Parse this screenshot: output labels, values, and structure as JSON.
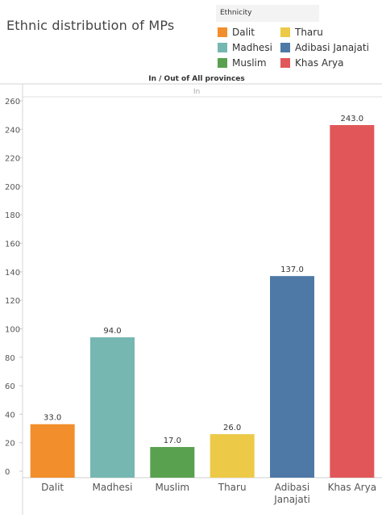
{
  "header": {
    "title": "Ethnic distribution of MPs"
  },
  "legend": {
    "title": "Ethnicity",
    "items": [
      {
        "label": "Dalit",
        "color": "#f28e2b"
      },
      {
        "label": "Tharu",
        "color": "#edc948"
      },
      {
        "label": "Madhesi",
        "color": "#76b7b2"
      },
      {
        "label": "Adibasi Janajati",
        "color": "#4e79a7"
      },
      {
        "label": "Muslim",
        "color": "#59a14f"
      },
      {
        "label": "Khas Arya",
        "color": "#e15759"
      }
    ]
  },
  "chart_data": {
    "type": "bar",
    "title": "Ethnic distribution of MPs",
    "facet_header": "In / Out of All provinces",
    "facet_label": "In",
    "categories": [
      "Dalit",
      "Madhesi",
      "Muslim",
      "Tharu",
      "Adibasi Janajati",
      "Khas Arya"
    ],
    "category_lines": [
      [
        "Dalit"
      ],
      [
        "Madhesi"
      ],
      [
        "Muslim"
      ],
      [
        "Tharu"
      ],
      [
        "Adibasi",
        "Janajati"
      ],
      [
        "Khas Arya"
      ]
    ],
    "values": [
      33.0,
      94.0,
      17.0,
      26.0,
      137.0,
      243.0
    ],
    "value_labels": [
      "33.0",
      "94.0",
      "17.0",
      "26.0",
      "137.0",
      "243.0"
    ],
    "colors": [
      "#f28e2b",
      "#76b7b2",
      "#59a14f",
      "#edc948",
      "#4e79a7",
      "#e15759"
    ],
    "ylim": [
      0,
      260
    ],
    "yticks": [
      0,
      20,
      40,
      60,
      80,
      100,
      120,
      140,
      160,
      180,
      200,
      220,
      240,
      260
    ],
    "xlabel": "",
    "ylabel": "",
    "grid": false
  }
}
